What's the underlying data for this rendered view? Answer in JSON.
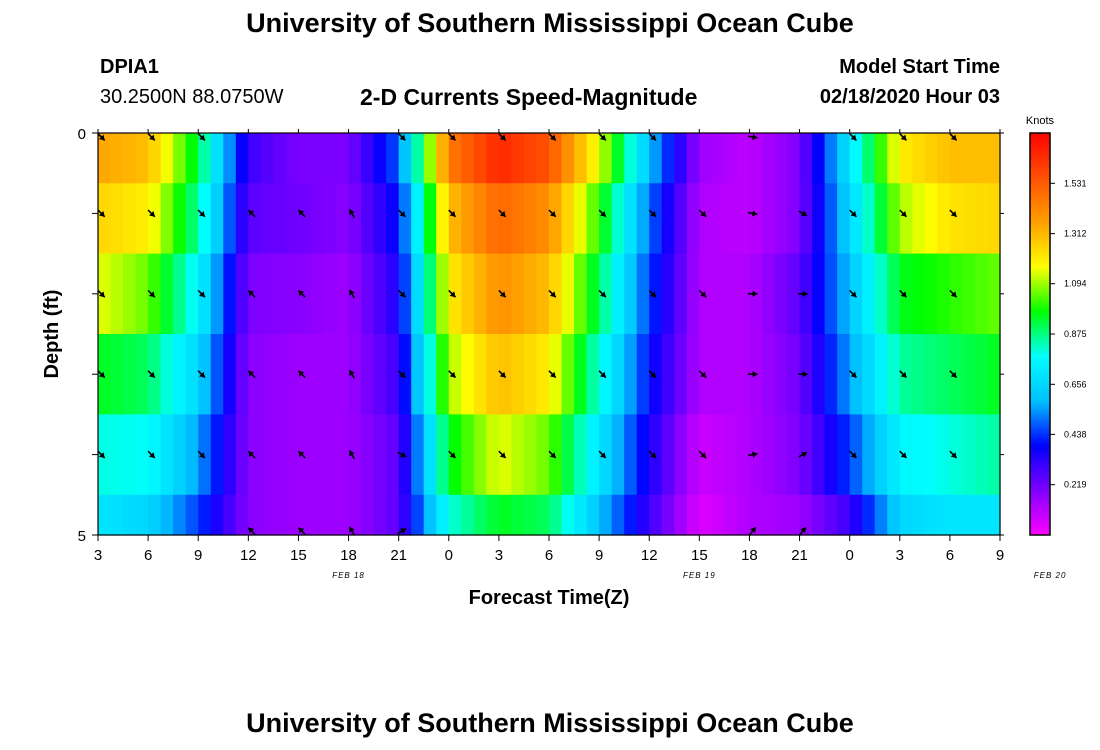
{
  "page": {
    "title": "University of Southern Mississippi Ocean Cube",
    "footer_title": "University of Southern Mississippi Ocean Cube",
    "station_id": "DPIA1",
    "station_coords": "30.2500N 88.0750W",
    "plot_title": "2-D Currents Speed-Magnitude",
    "model_start_label": "Model Start Time",
    "model_start_value": "02/18/2020 Hour 03"
  },
  "chart_data": {
    "type": "heatmap",
    "title": "2-D Currents Speed-Magnitude",
    "xlabel": "Forecast Time(Z)",
    "ylabel": "Depth (ft)",
    "ylim": [
      0,
      5
    ],
    "y_tick_labels": [
      "0",
      "5"
    ],
    "x_tick_labels": [
      "3",
      "6",
      "9",
      "12",
      "15",
      "18",
      "21",
      "0",
      "3",
      "6",
      "9",
      "12",
      "15",
      "18",
      "21",
      "0",
      "3",
      "6",
      "9"
    ],
    "date_labels": [
      {
        "text": "FEB 18",
        "forecast_hour": 15
      },
      {
        "text": "FEB 19",
        "forecast_hour": 36
      },
      {
        "text": "FEB 20",
        "forecast_hour": 57
      }
    ],
    "x_hours_range": [
      0,
      54
    ],
    "colorbar": {
      "unit": "Knots",
      "min": 0.0,
      "max": 1.75,
      "tick_values": [
        0.219,
        0.438,
        0.656,
        0.875,
        1.094,
        1.312,
        1.531
      ],
      "tick_labels": [
        "0.219",
        "0.438",
        "0.656",
        "0.875",
        "1.094",
        "1.312",
        "1.531"
      ],
      "colors": [
        "#ff00ff",
        "#8000ff",
        "#0000ff",
        "#00c0ff",
        "#00ffff",
        "#00ff00",
        "#ffff00",
        "#ffa000",
        "#ff5000",
        "#ff0000"
      ]
    },
    "layer_depths": [
      0.25,
      1.0,
      2.0,
      3.0,
      4.0,
      5.0
    ],
    "time_hours": [
      0,
      3,
      6,
      9,
      12,
      15,
      18,
      21,
      24,
      27,
      30,
      33,
      36,
      39,
      42,
      45,
      48,
      51,
      54
    ],
    "speed_layers": [
      [
        1.35,
        1.3,
        0.92,
        0.3,
        0.2,
        0.2,
        0.48,
        1.45,
        1.65,
        1.55,
        1.15,
        0.6,
        0.15,
        0.1,
        0.2,
        0.7,
        1.2,
        1.3,
        1.3
      ],
      [
        1.25,
        1.2,
        0.85,
        0.25,
        0.22,
        0.18,
        0.4,
        1.3,
        1.5,
        1.4,
        1.0,
        0.5,
        0.12,
        0.1,
        0.2,
        0.65,
        1.1,
        1.22,
        1.25
      ],
      [
        1.15,
        1.05,
        0.75,
        0.2,
        0.18,
        0.15,
        0.35,
        1.2,
        1.4,
        1.3,
        0.9,
        0.45,
        0.12,
        0.12,
        0.25,
        0.6,
        0.95,
        1.0,
        1.05
      ],
      [
        0.95,
        0.9,
        0.65,
        0.18,
        0.15,
        0.15,
        0.3,
        1.1,
        1.3,
        1.2,
        0.8,
        0.4,
        0.12,
        0.12,
        0.22,
        0.55,
        0.85,
        0.9,
        0.95
      ],
      [
        0.8,
        0.78,
        0.55,
        0.18,
        0.15,
        0.15,
        0.25,
        0.95,
        1.15,
        1.05,
        0.7,
        0.35,
        0.08,
        0.12,
        0.2,
        0.45,
        0.75,
        0.8,
        0.85
      ],
      [
        0.7,
        0.65,
        0.45,
        0.18,
        0.15,
        0.15,
        0.25,
        0.8,
        0.95,
        0.9,
        0.6,
        0.3,
        0.05,
        0.12,
        0.15,
        0.3,
        0.65,
        0.7,
        0.7
      ]
    ],
    "vector_direction_deg": [
      [
        135,
        135,
        135,
        null,
        null,
        null,
        135,
        135,
        135,
        135,
        135,
        135,
        null,
        100,
        null,
        135,
        135,
        135
      ],
      [
        135,
        135,
        135,
        315,
        315,
        330,
        135,
        135,
        135,
        135,
        135,
        135,
        135,
        100,
        120,
        135,
        135,
        135
      ],
      [
        135,
        135,
        135,
        315,
        315,
        330,
        135,
        135,
        135,
        135,
        135,
        135,
        135,
        90,
        90,
        135,
        135,
        135
      ],
      [
        135,
        135,
        135,
        315,
        315,
        330,
        135,
        135,
        135,
        135,
        135,
        135,
        135,
        90,
        90,
        135,
        135,
        135
      ],
      [
        135,
        135,
        135,
        315,
        315,
        330,
        120,
        135,
        135,
        135,
        135,
        135,
        135,
        80,
        60,
        135,
        135,
        135
      ],
      [
        null,
        null,
        null,
        315,
        315,
        330,
        60,
        null,
        null,
        null,
        null,
        null,
        null,
        40,
        40,
        null,
        null,
        null
      ]
    ]
  }
}
